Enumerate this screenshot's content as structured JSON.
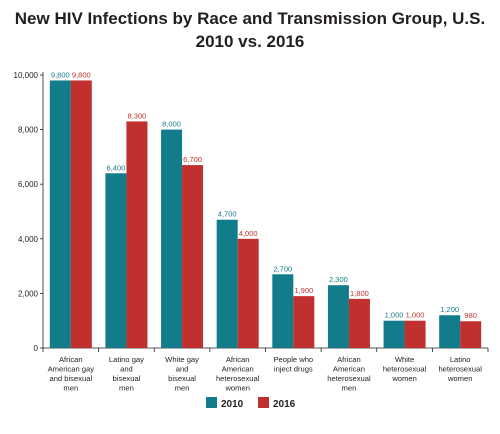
{
  "chart_data": {
    "type": "bar",
    "title": "New HIV Infections by Race and Transmission Group, U.S.",
    "subtitle": "2010 vs. 2016",
    "categories": [
      [
        "African",
        "American gay",
        "and bisexual",
        "men"
      ],
      [
        "Latino gay",
        "and",
        "bisexual",
        "men"
      ],
      [
        "White gay",
        "and",
        "bisexual",
        "men"
      ],
      [
        "African",
        "American",
        "heterosexual",
        "women"
      ],
      [
        "People who",
        "inject drugs"
      ],
      [
        "African",
        "American",
        "heterosexual",
        "men"
      ],
      [
        "White",
        "heterosexual",
        "women"
      ],
      [
        "Latino",
        "heterosexual",
        "women"
      ]
    ],
    "series": [
      {
        "name": "2010",
        "color": "#137c8b",
        "values": [
          9800,
          6400,
          8000,
          4700,
          2700,
          2300,
          1000,
          1200
        ],
        "labels": [
          "9,800",
          "6,400",
          "8,000",
          "4,700",
          "2,700",
          "2,300",
          "1,000",
          "1,200"
        ]
      },
      {
        "name": "2016",
        "color": "#c0302e",
        "values": [
          9800,
          8300,
          6700,
          4000,
          1900,
          1800,
          1000,
          980
        ],
        "labels": [
          "9,800",
          "8,300",
          "6,700",
          "4,000",
          "1,900",
          "1,800",
          "1,000",
          "980"
        ]
      }
    ],
    "yticks": [
      0,
      2000,
      4000,
      6000,
      8000,
      10000
    ],
    "ytick_labels": [
      "0",
      "2,000",
      "4,000",
      "6,000",
      "8,000",
      "10,000"
    ],
    "ylim": [
      0,
      10000
    ],
    "grid": false,
    "legend": "bottom-center"
  }
}
